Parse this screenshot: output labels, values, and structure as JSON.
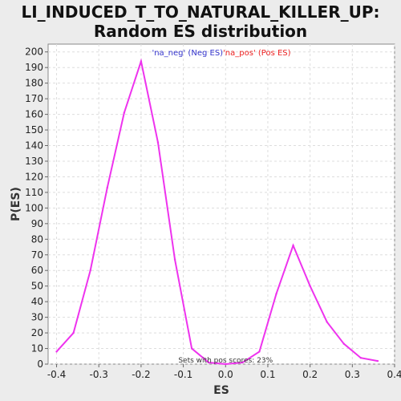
{
  "chart_data": {
    "type": "line",
    "title_line1": "LI_INDUCED_T_TO_NATURAL_KILLER_UP:",
    "title_line2": "Random ES distribution",
    "xlabel": "ES",
    "ylabel": "P(ES)",
    "xlim": [
      -0.42,
      0.4
    ],
    "ylim": [
      0,
      205
    ],
    "x_ticks": [
      -0.4,
      -0.3,
      -0.2,
      -0.1,
      0.0,
      0.1,
      0.2,
      0.3,
      0.4
    ],
    "x_tick_labels": [
      "-0.4",
      "-0.3",
      "-0.2",
      "-0.1",
      "0.0",
      "0.1",
      "0.2",
      "0.3",
      "0.4"
    ],
    "y_ticks": [
      0,
      10,
      20,
      30,
      40,
      50,
      60,
      70,
      80,
      90,
      100,
      110,
      120,
      130,
      140,
      150,
      160,
      170,
      180,
      190,
      200
    ],
    "grid": true,
    "legend": {
      "placement": "top",
      "neg": {
        "label": "'na_neg' (Neg ES)",
        "color": "#3333cc"
      },
      "pos": {
        "label": "'na_pos' (Pos ES)",
        "color": "#ee2222"
      }
    },
    "annotation": "Sets with pos scores: 23%",
    "series": [
      {
        "color": "#ee33ee",
        "x": [
          -0.4,
          -0.36,
          -0.32,
          -0.28,
          -0.24,
          -0.2,
          -0.16,
          -0.12,
          -0.08,
          -0.04,
          0.0,
          0.04,
          0.08,
          0.12,
          0.16,
          0.2,
          0.24,
          0.28,
          0.32,
          0.36
        ],
        "y": [
          8,
          20,
          60,
          113,
          161,
          194,
          142,
          67,
          10,
          1,
          0,
          1,
          8,
          45,
          76,
          50,
          27,
          13,
          4,
          2
        ]
      }
    ]
  }
}
